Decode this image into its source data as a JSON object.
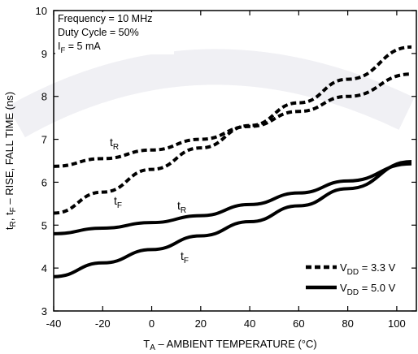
{
  "chart_data": {
    "type": "line",
    "xlabel": "T<sub>A</sub> – AMBIENT TEMPERATURE (°C)",
    "xlabel_parts": [
      "T",
      "A",
      " – AMBIENT TEMPERATURE (°C)"
    ],
    "ylabel_parts": [
      "t",
      "R",
      ", t",
      "F",
      " – RISE, FALL TIME (ns)"
    ],
    "xlim": [
      -40,
      108
    ],
    "ylim": [
      3,
      10
    ],
    "x_ticks": [
      -40,
      -20,
      0,
      20,
      40,
      60,
      80,
      100
    ],
    "y_ticks": [
      3,
      4,
      5,
      6,
      7,
      8,
      9,
      10
    ],
    "conditions": {
      "frequency": "Frequency = 10 MHz",
      "duty_cycle": "Duty Cycle = 50%",
      "forward_current": [
        "I",
        "F",
        " = 5 mA"
      ]
    },
    "series": [
      {
        "id": "tr33",
        "vdd": "3.3 V",
        "param": "tR",
        "style": "dashed",
        "x": [
          -40,
          -20,
          0,
          20,
          40,
          60,
          80,
          106
        ],
        "y": [
          6.37,
          6.55,
          6.75,
          7.0,
          7.3,
          7.65,
          8.0,
          8.52
        ]
      },
      {
        "id": "tf33",
        "vdd": "3.3 V",
        "param": "tF",
        "style": "dashed",
        "x": [
          -40,
          -20,
          0,
          20,
          40,
          60,
          80,
          106
        ],
        "y": [
          5.28,
          5.77,
          6.3,
          6.8,
          7.32,
          7.85,
          8.4,
          9.15
        ]
      },
      {
        "id": "tr50",
        "vdd": "5.0 V",
        "param": "tR",
        "style": "solid",
        "x": [
          -40,
          -20,
          0,
          20,
          40,
          60,
          80,
          106
        ],
        "y": [
          4.8,
          4.93,
          5.06,
          5.22,
          5.48,
          5.75,
          6.03,
          6.43
        ]
      },
      {
        "id": "tf50",
        "vdd": "5.0 V",
        "param": "tF",
        "style": "solid",
        "x": [
          -40,
          -20,
          0,
          20,
          40,
          60,
          80,
          106
        ],
        "y": [
          3.8,
          4.12,
          4.43,
          4.75,
          5.08,
          5.45,
          5.85,
          6.48
        ]
      }
    ],
    "curve_labels": [
      {
        "for": "tr33",
        "parts": [
          "t",
          "R"
        ],
        "at": [
          -10,
          6.95
        ]
      },
      {
        "for": "tf33",
        "parts": [
          "t",
          "F"
        ],
        "at": [
          -10,
          4.95
        ]
      },
      {
        "for": "tr50",
        "parts": [
          "t",
          "R"
        ],
        "at": [
          15,
          4.95
        ]
      },
      {
        "for": "tf50",
        "parts": [
          "t",
          "F"
        ],
        "at": [
          18,
          3.95
        ]
      }
    ],
    "legend": [
      {
        "style": "dashed",
        "parts": [
          "V",
          "DD",
          " = 3.3 V"
        ]
      },
      {
        "style": "solid",
        "parts": [
          "V",
          "DD",
          " = 5.0 V"
        ]
      }
    ],
    "legend_placement": "bottom-right",
    "grid": false,
    "colors": {
      "line": "#000000",
      "frame": "#000000"
    }
  }
}
